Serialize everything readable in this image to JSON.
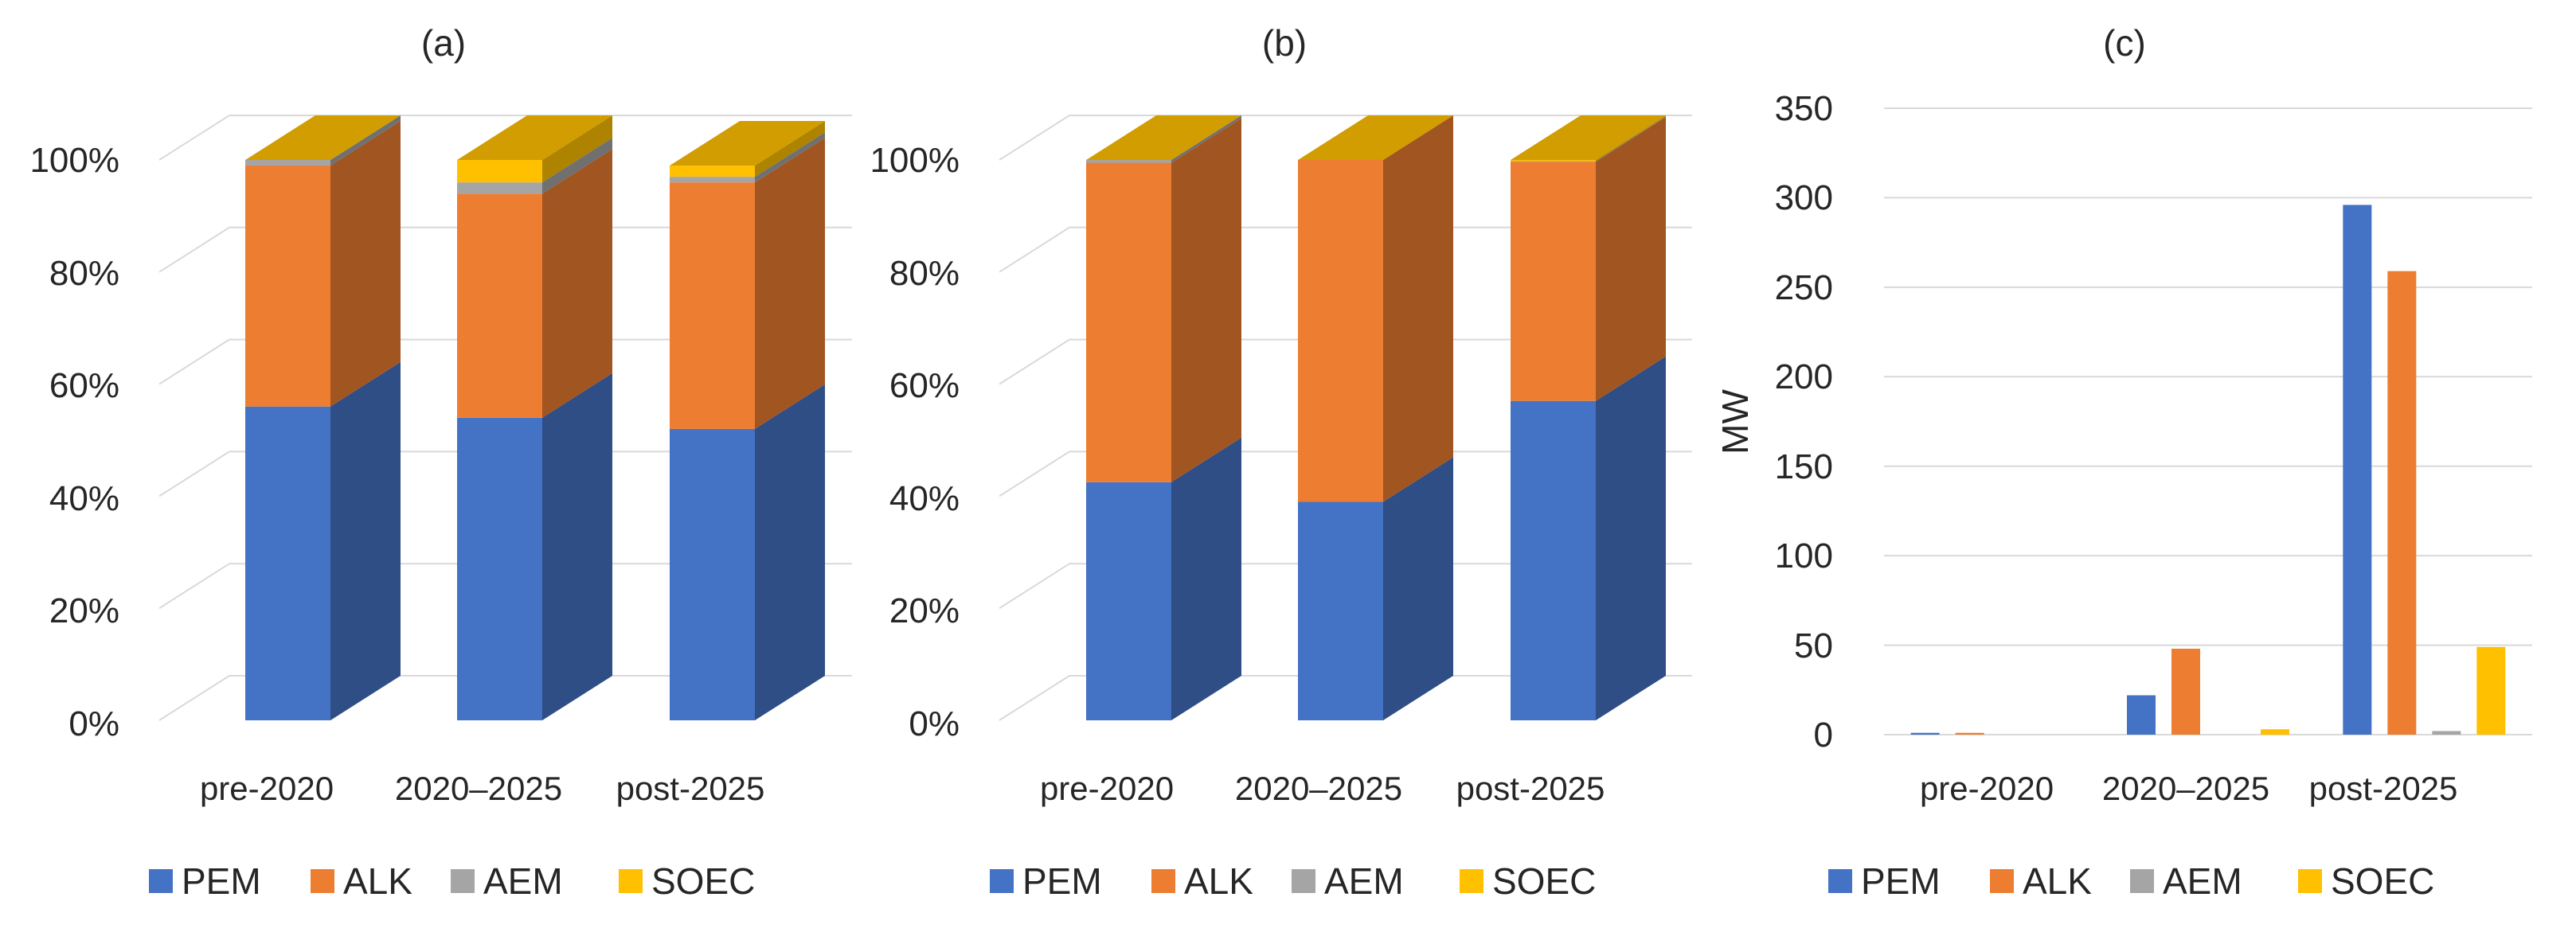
{
  "colors": {
    "PEM": "#4472c4",
    "ALK": "#ed7d31",
    "AEM": "#a5a5a5",
    "SOEC": "#ffc000",
    "grid": "#d9d9d9",
    "text": "#262626"
  },
  "chart_data": [
    {
      "id": "a",
      "type": "bar",
      "stacked": true,
      "style": "3d",
      "title": "(a)",
      "xlabel": "",
      "ylabel": "",
      "categories": [
        "pre-2020",
        "2020–2025",
        "post-2025"
      ],
      "ylim": [
        0,
        100
      ],
      "yticks": [
        0,
        20,
        40,
        60,
        80,
        100
      ],
      "ytick_labels": [
        "0%",
        "20%",
        "40%",
        "60%",
        "80%",
        "100%"
      ],
      "grid": true,
      "legend": "bottom",
      "series": [
        {
          "name": "PEM",
          "values": [
            56,
            54,
            52
          ]
        },
        {
          "name": "ALK",
          "values": [
            43,
            40,
            44
          ]
        },
        {
          "name": "AEM",
          "values": [
            1,
            2,
            1
          ]
        },
        {
          "name": "SOEC",
          "values": [
            0,
            4,
            2
          ]
        }
      ]
    },
    {
      "id": "b",
      "type": "bar",
      "stacked": true,
      "style": "3d",
      "title": "(b)",
      "xlabel": "",
      "ylabel": "",
      "categories": [
        "pre-2020",
        "2020–2025",
        "post-2025"
      ],
      "ylim": [
        0,
        100
      ],
      "yticks": [
        0,
        20,
        40,
        60,
        80,
        100
      ],
      "ytick_labels": [
        "0%",
        "20%",
        "40%",
        "60%",
        "80%",
        "100%"
      ],
      "grid": true,
      "legend": "bottom",
      "series": [
        {
          "name": "PEM",
          "values": [
            42.5,
            39,
            57
          ]
        },
        {
          "name": "ALK",
          "values": [
            57,
            61,
            42.7
          ]
        },
        {
          "name": "AEM",
          "values": [
            0.5,
            0,
            0.1
          ]
        },
        {
          "name": "SOEC",
          "values": [
            0,
            0,
            0.2
          ]
        }
      ]
    },
    {
      "id": "c",
      "type": "bar",
      "stacked": false,
      "style": "2d",
      "title": "(c)",
      "xlabel": "",
      "ylabel": "MW",
      "categories": [
        "pre-2020",
        "2020–2025",
        "post-2025"
      ],
      "ylim": [
        0,
        350
      ],
      "yticks": [
        0,
        50,
        100,
        150,
        200,
        250,
        300,
        350
      ],
      "ytick_labels": [
        "0",
        "50",
        "100",
        "150",
        "200",
        "250",
        "300",
        "350"
      ],
      "grid": true,
      "legend": "bottom",
      "series": [
        {
          "name": "PEM",
          "values": [
            1,
            22,
            296
          ]
        },
        {
          "name": "ALK",
          "values": [
            1,
            48,
            259
          ]
        },
        {
          "name": "AEM",
          "values": [
            0,
            0,
            2
          ]
        },
        {
          "name": "SOEC",
          "values": [
            0,
            3,
            49
          ]
        }
      ]
    }
  ]
}
